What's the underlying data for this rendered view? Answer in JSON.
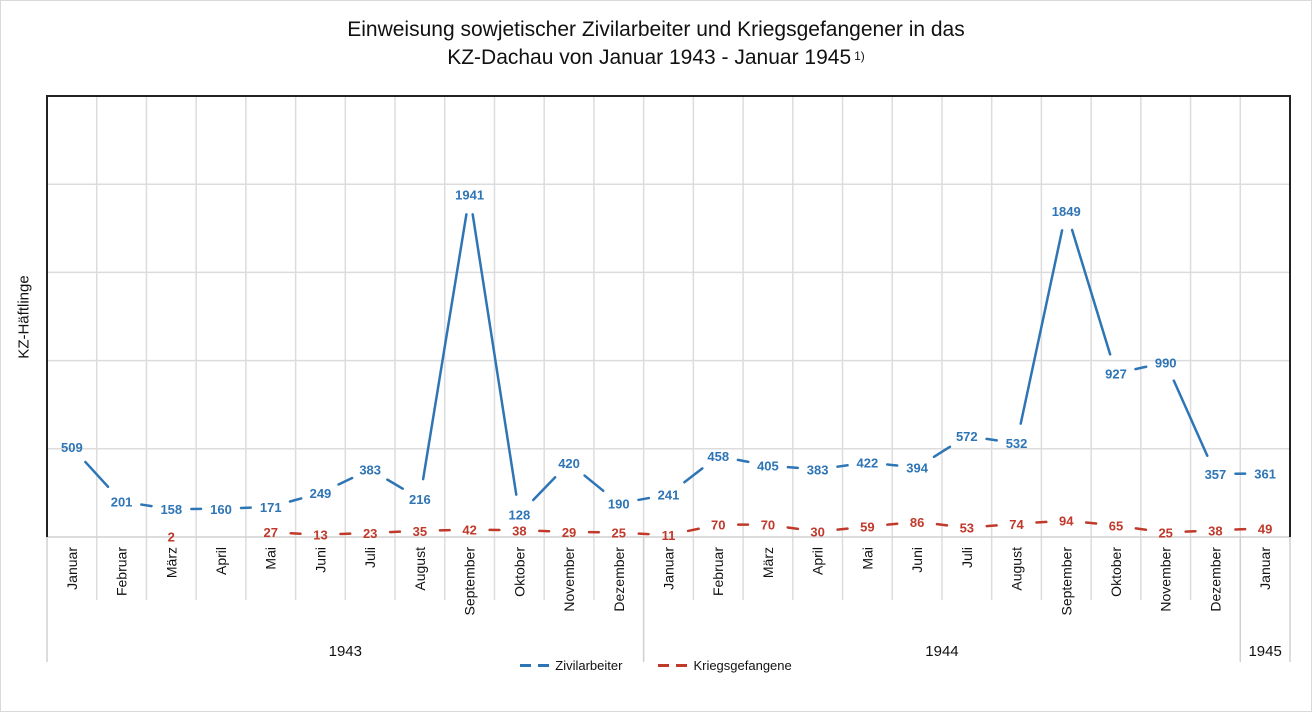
{
  "chart_data": {
    "type": "line",
    "title_line1": "Einweisung sowjetischer Zivilarbeiter und Kriegsgefangener in das",
    "title_line2": "KZ-Dachau von Januar 1943 - Januar 1945",
    "title_footnote": "1)",
    "ylabel": "KZ-Häftlinge",
    "xlabel": "",
    "ylim": [
      0,
      2500
    ],
    "y_grid_step": 500,
    "grid": true,
    "legend_position": "bottom",
    "categories": [
      "Januar",
      "Februar",
      "März",
      "April",
      "Mai",
      "Juni",
      "Juli",
      "August",
      "September",
      "Oktober",
      "November",
      "Dezember",
      "Januar",
      "Februar",
      "März",
      "April",
      "Mai",
      "Juni",
      "Juli",
      "August",
      "September",
      "Oktober",
      "November",
      "Dezember",
      "Januar"
    ],
    "year_groups": [
      {
        "label": "1943",
        "count": 12
      },
      {
        "label": "1944",
        "count": 12
      },
      {
        "label": "1945",
        "count": 1
      }
    ],
    "series": [
      {
        "name": "Zivilarbeiter",
        "color": "#2e75b6",
        "values": [
          509,
          201,
          158,
          160,
          171,
          249,
          383,
          216,
          1941,
          128,
          420,
          190,
          241,
          458,
          405,
          383,
          422,
          394,
          572,
          532,
          1849,
          927,
          990,
          357,
          361
        ]
      },
      {
        "name": "Kriegsgefangene",
        "color": "#c0392b",
        "values": [
          null,
          null,
          2,
          null,
          27,
          13,
          23,
          35,
          42,
          38,
          29,
          25,
          11,
          70,
          70,
          30,
          59,
          86,
          53,
          74,
          94,
          65,
          25,
          38,
          49
        ]
      }
    ]
  }
}
